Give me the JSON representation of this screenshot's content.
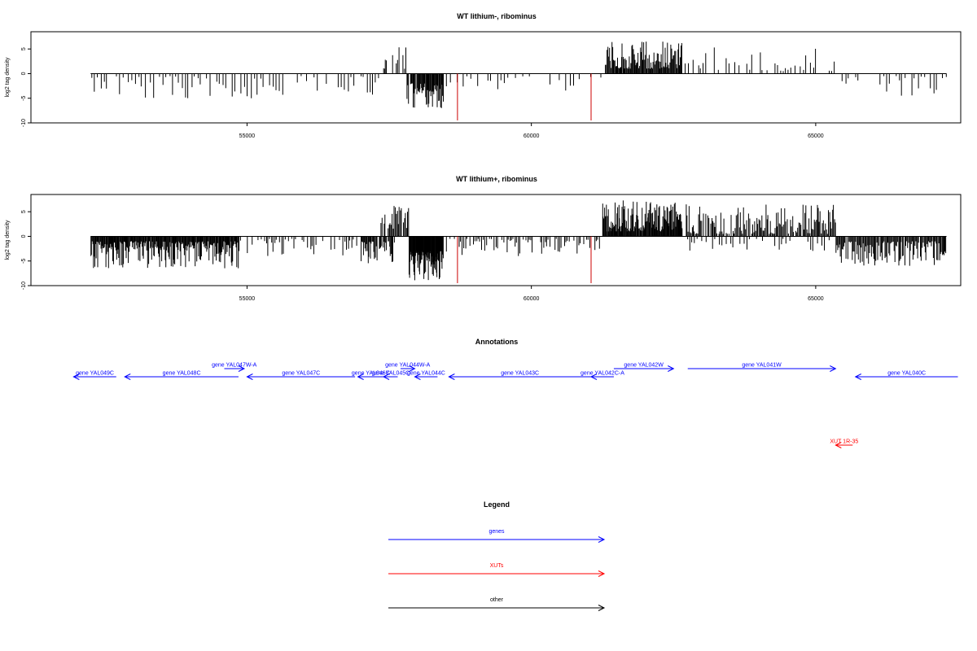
{
  "colors": {
    "gene": "#0000ff",
    "xut": "#ff0000",
    "other": "#000000",
    "signal": "#000000",
    "marker": "#cc0000"
  },
  "chart_data": [
    {
      "type": "bar",
      "title": "WT lithium-, ribominus",
      "ylabel": "log2 tag density",
      "xlim": [
        51200,
        67550
      ],
      "ylim": [
        -10,
        8.5
      ],
      "xticks": [
        55000,
        60000,
        65000
      ],
      "yticks": [
        -10,
        -5,
        0,
        5
      ],
      "segments": [
        {
          "x0": 52250,
          "x1": 57350,
          "sign": -1,
          "hmin": 0.5,
          "hmax": 5,
          "step": 55,
          "density": 0.75
        },
        {
          "x0": 57400,
          "x1": 57450,
          "sign": 1,
          "hmin": 1,
          "hmax": 3,
          "step": 15,
          "density": 1
        },
        {
          "x0": 57550,
          "x1": 57800,
          "sign": 1,
          "hmin": 1,
          "hmax": 6,
          "step": 30,
          "density": 0.7
        },
        {
          "x0": 57800,
          "x1": 58450,
          "sign": -1,
          "hmin": 2,
          "hmax": 7,
          "step": 12,
          "density": 0.95
        },
        {
          "x0": 58500,
          "x1": 61250,
          "sign": -1,
          "hmin": 0.5,
          "hmax": 3.5,
          "step": 60,
          "density": 0.45
        },
        {
          "x0": 61300,
          "x1": 62650,
          "sign": 1,
          "hmin": 1,
          "hmax": 6.5,
          "step": 14,
          "density": 1
        },
        {
          "x0": 62700,
          "x1": 65350,
          "sign": 1,
          "hmin": 0.5,
          "hmax": 5.5,
          "step": 45,
          "density": 0.55
        },
        {
          "x0": 65350,
          "x1": 67300,
          "sign": -1,
          "hmin": 0.5,
          "hmax": 4.5,
          "step": 55,
          "density": 0.6
        }
      ],
      "markers": [
        {
          "x": 58700,
          "y": -9.5
        },
        {
          "x": 61050,
          "y": -9.5
        }
      ]
    },
    {
      "type": "bar",
      "title": "WT lithium+, ribominus",
      "ylabel": "log2 tag density",
      "xlim": [
        51200,
        67550
      ],
      "ylim": [
        -10,
        8.5
      ],
      "xticks": [
        55000,
        60000,
        65000
      ],
      "yticks": [
        -10,
        -5,
        0,
        5
      ],
      "segments": [
        {
          "x0": 52250,
          "x1": 54850,
          "sign": -1,
          "hmin": 1,
          "hmax": 6.5,
          "step": 12,
          "density": 1
        },
        {
          "x0": 54850,
          "x1": 57000,
          "sign": -1,
          "hmin": 0.5,
          "hmax": 4,
          "step": 30,
          "density": 0.75
        },
        {
          "x0": 57000,
          "x1": 57600,
          "sign": -1,
          "hmin": 1,
          "hmax": 5.5,
          "step": 14,
          "density": 0.95
        },
        {
          "x0": 57350,
          "x1": 57850,
          "sign": 1,
          "hmin": 1,
          "hmax": 6.5,
          "step": 18,
          "density": 0.85
        },
        {
          "x0": 57850,
          "x1": 58450,
          "sign": -1,
          "hmin": 3,
          "hmax": 9,
          "step": 8,
          "density": 1
        },
        {
          "x0": 58500,
          "x1": 61200,
          "sign": -1,
          "hmin": 0.5,
          "hmax": 4,
          "step": 28,
          "density": 0.75
        },
        {
          "x0": 61250,
          "x1": 62650,
          "sign": 1,
          "hmin": 1,
          "hmax": 7.5,
          "step": 11,
          "density": 1
        },
        {
          "x0": 62700,
          "x1": 65350,
          "sign": 1,
          "hmin": 0.5,
          "hmax": 6.5,
          "step": 18,
          "density": 0.9
        },
        {
          "x0": 62700,
          "x1": 65350,
          "sign": -1,
          "hmin": 0.5,
          "hmax": 3,
          "step": 40,
          "density": 0.5
        },
        {
          "x0": 65350,
          "x1": 67300,
          "sign": -1,
          "hmin": 1,
          "hmax": 6,
          "step": 16,
          "density": 0.95
        }
      ],
      "markers": [
        {
          "x": 58700,
          "y": -9.5
        },
        {
          "x": 61050,
          "y": -9.5
        }
      ]
    }
  ],
  "annotations": {
    "title": "Annotations",
    "features": [
      {
        "label": "gene YAL049C",
        "start": 51950,
        "end": 52700,
        "strand": "-",
        "kind": "gene",
        "row": 0
      },
      {
        "label": "gene YAL048C",
        "start": 52850,
        "end": 54850,
        "strand": "-",
        "kind": "gene",
        "row": 0
      },
      {
        "label": "gene YAL047W-A",
        "start": 54600,
        "end": 54950,
        "strand": "+",
        "kind": "gene",
        "row": 1
      },
      {
        "label": "gene YAL047C",
        "start": 55000,
        "end": 56900,
        "strand": "-",
        "kind": "gene",
        "row": 0
      },
      {
        "label": "gene YAL046C",
        "start": 56950,
        "end": 57400,
        "strand": "-",
        "kind": "gene",
        "row": 0
      },
      {
        "label": "gene YAL045C",
        "start": 57400,
        "end": 57650,
        "strand": "-",
        "kind": "gene",
        "row": 0
      },
      {
        "label": "gene YAL044W-A",
        "start": 57700,
        "end": 57950,
        "strand": "+",
        "kind": "gene",
        "row": 1
      },
      {
        "label": "gene YAL044C",
        "start": 57950,
        "end": 58350,
        "strand": "-",
        "kind": "gene",
        "row": 0
      },
      {
        "label": "gene YAL043C",
        "start": 58550,
        "end": 61050,
        "strand": "-",
        "kind": "gene",
        "row": 0
      },
      {
        "label": "gene YAL042C-A",
        "start": 61050,
        "end": 61450,
        "strand": "-",
        "kind": "gene",
        "row": 0
      },
      {
        "label": "gene YAL042W",
        "start": 61450,
        "end": 62500,
        "strand": "+",
        "kind": "gene",
        "row": 1
      },
      {
        "label": "gene YAL041W",
        "start": 62750,
        "end": 65350,
        "strand": "+",
        "kind": "gene",
        "row": 1
      },
      {
        "label": "gene YAL040C",
        "start": 65700,
        "end": 67500,
        "strand": "-",
        "kind": "gene",
        "row": 0
      },
      {
        "label": "XUT 1R-35",
        "start": 65350,
        "end": 65650,
        "strand": "-",
        "kind": "xut",
        "row": 2
      }
    ]
  },
  "legend": {
    "title": "Legend",
    "items": [
      {
        "label": "genes",
        "kind": "gene"
      },
      {
        "label": "XUTs",
        "kind": "xut"
      },
      {
        "label": "other",
        "kind": "other"
      }
    ]
  }
}
